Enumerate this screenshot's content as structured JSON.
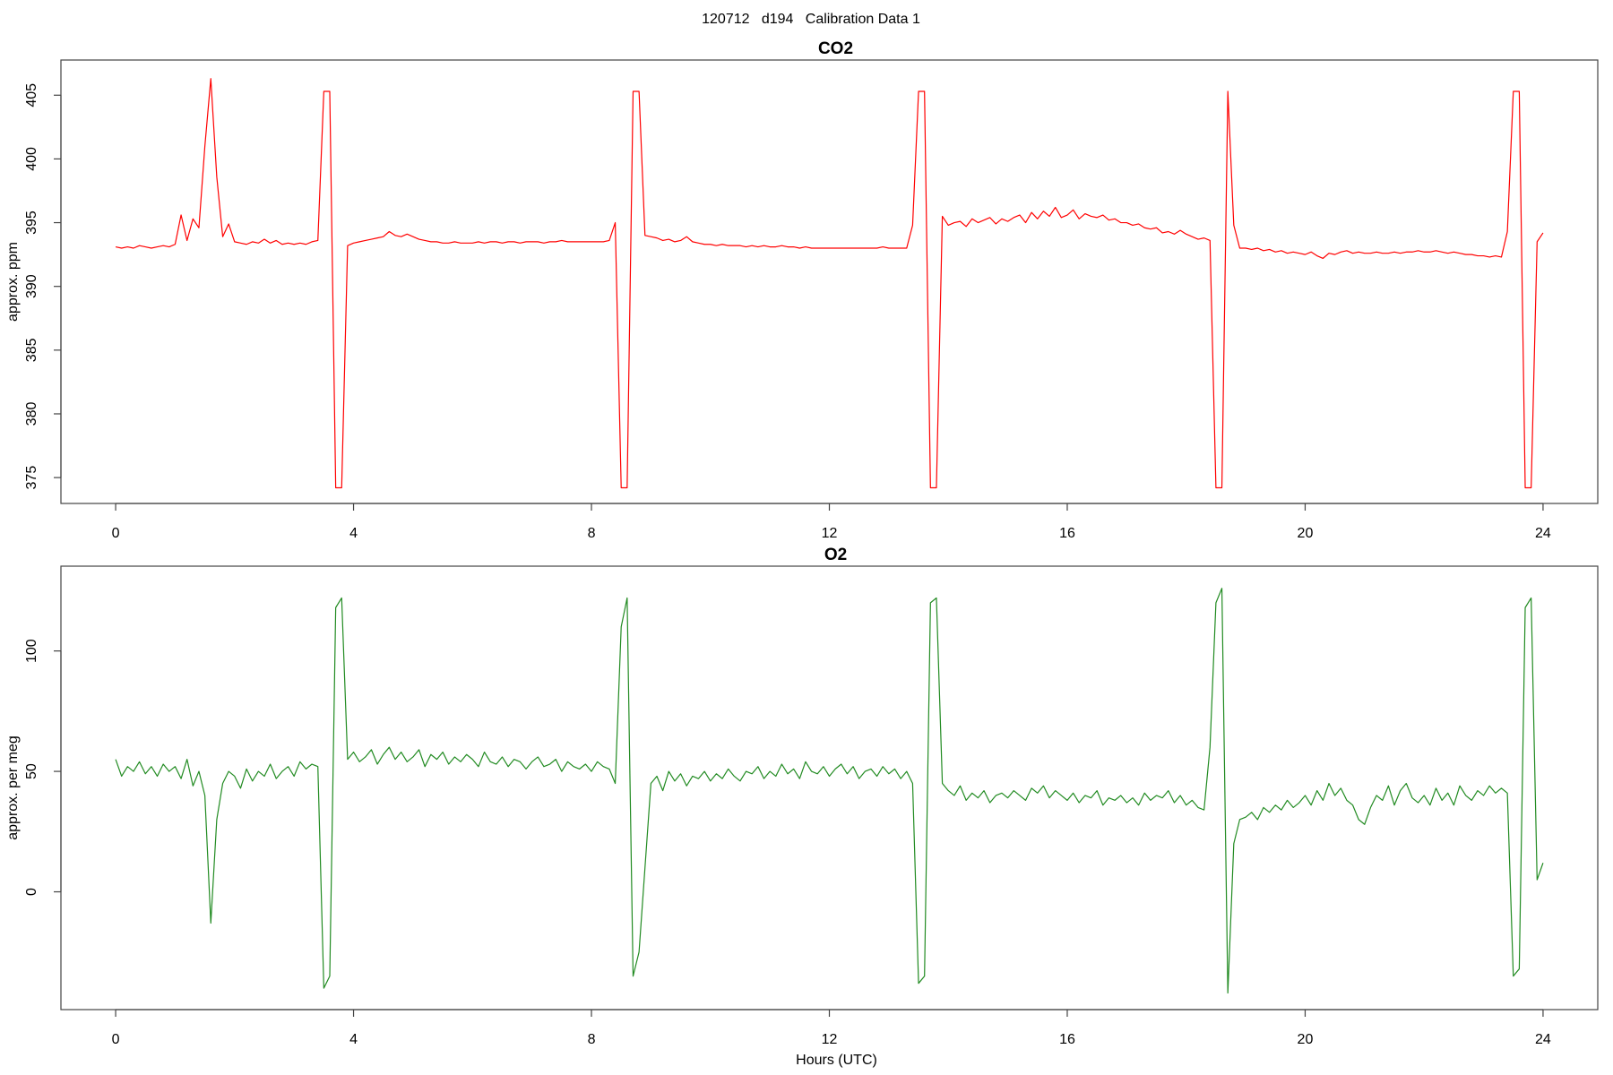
{
  "title": "120712   d194   Calibration Data 1",
  "chart_data": [
    {
      "type": "line",
      "title": "CO2",
      "y_label": "approx. ppm",
      "x": [
        0,
        0.1,
        0.2,
        0.3,
        0.4,
        0.5,
        0.6,
        0.7,
        0.8,
        0.9,
        1,
        1.1,
        1.2,
        1.3,
        1.4,
        1.5,
        1.6,
        1.7,
        1.8,
        1.9,
        2,
        2.1,
        2.2,
        2.3,
        2.4,
        2.5,
        2.6,
        2.7,
        2.8,
        2.9,
        3,
        3.1,
        3.2,
        3.3,
        3.4,
        3.5,
        3.6,
        3.7,
        3.8,
        3.9,
        4,
        4.1,
        4.2,
        4.3,
        4.4,
        4.5,
        4.6,
        4.7,
        4.8,
        4.9,
        5,
        5.1,
        5.2,
        5.3,
        5.4,
        5.5,
        5.6,
        5.7,
        5.8,
        5.9,
        6,
        6.1,
        6.2,
        6.3,
        6.4,
        6.5,
        6.6,
        6.7,
        6.8,
        6.9,
        7,
        7.1,
        7.2,
        7.3,
        7.4,
        7.5,
        7.6,
        7.7,
        7.8,
        7.9,
        8,
        8.1,
        8.2,
        8.3,
        8.4,
        8.5,
        8.6,
        8.7,
        8.8,
        8.9,
        9,
        9.1,
        9.2,
        9.3,
        9.4,
        9.5,
        9.6,
        9.7,
        9.8,
        9.9,
        10,
        10.1,
        10.2,
        10.3,
        10.4,
        10.5,
        10.6,
        10.7,
        10.8,
        10.9,
        11,
        11.1,
        11.2,
        11.3,
        11.4,
        11.5,
        11.6,
        11.7,
        11.8,
        11.9,
        12,
        12.1,
        12.2,
        12.3,
        12.4,
        12.5,
        12.6,
        12.7,
        12.8,
        12.9,
        13,
        13.1,
        13.2,
        13.3,
        13.4,
        13.5,
        13.6,
        13.7,
        13.8,
        13.9,
        14,
        14.1,
        14.2,
        14.3,
        14.4,
        14.5,
        14.6,
        14.7,
        14.8,
        14.9,
        15,
        15.1,
        15.2,
        15.3,
        15.4,
        15.5,
        15.6,
        15.7,
        15.8,
        15.9,
        16,
        16.1,
        16.2,
        16.3,
        16.4,
        16.5,
        16.6,
        16.7,
        16.8,
        16.9,
        17,
        17.1,
        17.2,
        17.3,
        17.4,
        17.5,
        17.6,
        17.7,
        17.8,
        17.9,
        18,
        18.1,
        18.2,
        18.3,
        18.4,
        18.5,
        18.6,
        18.7,
        18.8,
        18.9,
        19,
        19.1,
        19.2,
        19.3,
        19.4,
        19.5,
        19.6,
        19.7,
        19.8,
        19.9,
        20,
        20.1,
        20.2,
        20.3,
        20.4,
        20.5,
        20.6,
        20.7,
        20.8,
        20.9,
        21,
        21.1,
        21.2,
        21.3,
        21.4,
        21.5,
        21.6,
        21.7,
        21.8,
        21.9,
        22,
        22.1,
        22.2,
        22.3,
        22.4,
        22.5,
        22.6,
        22.7,
        22.8,
        22.9,
        23,
        23.1,
        23.2,
        23.3,
        23.4,
        23.5,
        23.6,
        23.7,
        23.8,
        23.9,
        24
      ],
      "series": [
        {
          "color": "#ff0000",
          "values": [
            393.1,
            393.0,
            393.1,
            393.0,
            393.2,
            393.1,
            393.0,
            393.1,
            393.2,
            393.1,
            393.3,
            395.6,
            393.6,
            395.3,
            394.6,
            401.0,
            406.3,
            398.6,
            393.9,
            394.9,
            393.5,
            393.4,
            393.3,
            393.5,
            393.4,
            393.7,
            393.4,
            393.6,
            393.3,
            393.4,
            393.3,
            393.4,
            393.3,
            393.5,
            393.6,
            405.3,
            405.3,
            374.2,
            374.2,
            393.2,
            393.4,
            393.5,
            393.6,
            393.7,
            393.8,
            393.9,
            394.3,
            394.0,
            393.9,
            394.1,
            393.9,
            393.7,
            393.6,
            393.5,
            393.5,
            393.4,
            393.4,
            393.5,
            393.4,
            393.4,
            393.4,
            393.5,
            393.4,
            393.5,
            393.5,
            393.4,
            393.5,
            393.5,
            393.4,
            393.5,
            393.5,
            393.5,
            393.4,
            393.5,
            393.5,
            393.6,
            393.5,
            393.5,
            393.5,
            393.5,
            393.5,
            393.5,
            393.5,
            393.6,
            395.0,
            374.2,
            374.2,
            405.3,
            405.3,
            394.0,
            393.9,
            393.8,
            393.6,
            393.7,
            393.5,
            393.6,
            393.9,
            393.5,
            393.4,
            393.3,
            393.3,
            393.2,
            393.3,
            393.2,
            393.2,
            393.2,
            393.1,
            393.2,
            393.1,
            393.2,
            393.1,
            393.1,
            393.2,
            393.1,
            393.1,
            393.0,
            393.1,
            393.0,
            393.0,
            393.0,
            393.0,
            393.0,
            393.0,
            393.0,
            393.0,
            393.0,
            393.0,
            393.0,
            393.0,
            393.1,
            393.0,
            393.0,
            393.0,
            393.0,
            394.8,
            405.3,
            405.3,
            374.2,
            374.2,
            395.5,
            394.8,
            395.0,
            395.1,
            394.7,
            395.3,
            395.0,
            395.2,
            395.4,
            394.9,
            395.3,
            395.1,
            395.4,
            395.6,
            395.0,
            395.8,
            395.3,
            395.9,
            395.5,
            396.2,
            395.4,
            395.6,
            396.0,
            395.3,
            395.7,
            395.5,
            395.4,
            395.6,
            395.2,
            395.3,
            395.0,
            395.0,
            394.8,
            394.9,
            394.6,
            394.5,
            394.6,
            394.2,
            394.3,
            394.1,
            394.4,
            394.1,
            393.9,
            393.7,
            393.8,
            393.6,
            374.2,
            374.2,
            405.3,
            394.8,
            393.0,
            393.0,
            392.9,
            393.0,
            392.8,
            392.9,
            392.7,
            392.8,
            392.6,
            392.7,
            392.6,
            392.5,
            392.7,
            392.4,
            392.2,
            392.6,
            392.5,
            392.7,
            392.8,
            392.6,
            392.7,
            392.6,
            392.6,
            392.7,
            392.6,
            392.6,
            392.7,
            392.6,
            392.7,
            392.7,
            392.8,
            392.7,
            392.7,
            392.8,
            392.7,
            392.6,
            392.7,
            392.6,
            392.5,
            392.5,
            392.4,
            392.4,
            392.3,
            392.4,
            392.3,
            394.3,
            405.3,
            405.3,
            374.2,
            374.2,
            393.5,
            394.2
          ]
        }
      ],
      "xlim": [
        -0.92,
        24.92
      ],
      "xticks": [
        0,
        4,
        8,
        12,
        16,
        20,
        24
      ],
      "ylim": [
        372.97,
        407.76
      ],
      "yticks": [
        375,
        380,
        385,
        390,
        395,
        400,
        405
      ]
    },
    {
      "type": "line",
      "title": "O2",
      "y_label": "approx. per meg",
      "x_label": "Hours (UTC)",
      "x": [
        0,
        0.1,
        0.2,
        0.3,
        0.4,
        0.5,
        0.6,
        0.7,
        0.8,
        0.9,
        1,
        1.1,
        1.2,
        1.3,
        1.4,
        1.5,
        1.6,
        1.7,
        1.8,
        1.9,
        2,
        2.1,
        2.2,
        2.3,
        2.4,
        2.5,
        2.6,
        2.7,
        2.8,
        2.9,
        3,
        3.1,
        3.2,
        3.3,
        3.4,
        3.5,
        3.6,
        3.7,
        3.8,
        3.9,
        4,
        4.1,
        4.2,
        4.3,
        4.4,
        4.5,
        4.6,
        4.7,
        4.8,
        4.9,
        5,
        5.1,
        5.2,
        5.3,
        5.4,
        5.5,
        5.6,
        5.7,
        5.8,
        5.9,
        6,
        6.1,
        6.2,
        6.3,
        6.4,
        6.5,
        6.6,
        6.7,
        6.8,
        6.9,
        7,
        7.1,
        7.2,
        7.3,
        7.4,
        7.5,
        7.6,
        7.7,
        7.8,
        7.9,
        8,
        8.1,
        8.2,
        8.3,
        8.4,
        8.5,
        8.6,
        8.7,
        8.8,
        8.9,
        9,
        9.1,
        9.2,
        9.3,
        9.4,
        9.5,
        9.6,
        9.7,
        9.8,
        9.9,
        10,
        10.1,
        10.2,
        10.3,
        10.4,
        10.5,
        10.6,
        10.7,
        10.8,
        10.9,
        11,
        11.1,
        11.2,
        11.3,
        11.4,
        11.5,
        11.6,
        11.7,
        11.8,
        11.9,
        12,
        12.1,
        12.2,
        12.3,
        12.4,
        12.5,
        12.6,
        12.7,
        12.8,
        12.9,
        13,
        13.1,
        13.2,
        13.3,
        13.4,
        13.5,
        13.6,
        13.7,
        13.8,
        13.9,
        14,
        14.1,
        14.2,
        14.3,
        14.4,
        14.5,
        14.6,
        14.7,
        14.8,
        14.9,
        15,
        15.1,
        15.2,
        15.3,
        15.4,
        15.5,
        15.6,
        15.7,
        15.8,
        15.9,
        16,
        16.1,
        16.2,
        16.3,
        16.4,
        16.5,
        16.6,
        16.7,
        16.8,
        16.9,
        17,
        17.1,
        17.2,
        17.3,
        17.4,
        17.5,
        17.6,
        17.7,
        17.8,
        17.9,
        18,
        18.1,
        18.2,
        18.3,
        18.4,
        18.5,
        18.6,
        18.7,
        18.8,
        18.9,
        19,
        19.1,
        19.2,
        19.3,
        19.4,
        19.5,
        19.6,
        19.7,
        19.8,
        19.9,
        20,
        20.1,
        20.2,
        20.3,
        20.4,
        20.5,
        20.6,
        20.7,
        20.8,
        20.9,
        21,
        21.1,
        21.2,
        21.3,
        21.4,
        21.5,
        21.6,
        21.7,
        21.8,
        21.9,
        22,
        22.1,
        22.2,
        22.3,
        22.4,
        22.5,
        22.6,
        22.7,
        22.8,
        22.9,
        23,
        23.1,
        23.2,
        23.3,
        23.4,
        23.5,
        23.6,
        23.7,
        23.8,
        23.9,
        24
      ],
      "series": [
        {
          "color": "#228b22",
          "values": [
            55,
            48,
            52,
            50,
            54,
            49,
            52,
            48,
            53,
            50,
            52,
            47,
            55,
            44,
            50,
            40,
            -13,
            30,
            45,
            50,
            48,
            43,
            51,
            46,
            50,
            48,
            53,
            47,
            50,
            52,
            48,
            54,
            51,
            53,
            52,
            -40,
            -35,
            118,
            122,
            55,
            58,
            54,
            56,
            59,
            53,
            57,
            60,
            55,
            58,
            54,
            56,
            59,
            52,
            57,
            55,
            58,
            53,
            56,
            54,
            57,
            55,
            52,
            58,
            54,
            53,
            56,
            52,
            55,
            54,
            51,
            54,
            56,
            52,
            53,
            55,
            50,
            54,
            52,
            51,
            53,
            50,
            54,
            52,
            51,
            45,
            110,
            122,
            -35,
            -25,
            10,
            45,
            48,
            42,
            50,
            46,
            49,
            44,
            48,
            47,
            50,
            46,
            49,
            47,
            51,
            48,
            46,
            50,
            49,
            52,
            47,
            50,
            48,
            53,
            49,
            51,
            47,
            54,
            50,
            49,
            52,
            48,
            51,
            53,
            49,
            52,
            47,
            50,
            51,
            48,
            52,
            49,
            51,
            47,
            50,
            45,
            -38,
            -35,
            120,
            122,
            45,
            42,
            40,
            44,
            38,
            41,
            39,
            42,
            37,
            40,
            41,
            39,
            42,
            40,
            38,
            43,
            41,
            44,
            39,
            42,
            40,
            38,
            41,
            37,
            40,
            39,
            42,
            36,
            39,
            38,
            40,
            37,
            39,
            36,
            41,
            38,
            40,
            39,
            42,
            37,
            40,
            36,
            38,
            35,
            34,
            60,
            120,
            126,
            -42,
            20,
            30,
            31,
            33,
            30,
            35,
            33,
            36,
            34,
            38,
            35,
            37,
            40,
            36,
            42,
            38,
            45,
            40,
            43,
            38,
            36,
            30,
            28,
            35,
            40,
            38,
            44,
            36,
            42,
            45,
            39,
            37,
            40,
            36,
            43,
            38,
            41,
            36,
            44,
            40,
            38,
            42,
            40,
            44,
            41,
            43,
            41,
            -35,
            -32,
            118,
            122,
            5,
            12
          ]
        }
      ],
      "xlim": [
        -0.92,
        24.92
      ],
      "xticks": [
        0,
        4,
        8,
        12,
        16,
        20,
        24
      ],
      "ylim": [
        -48.9,
        135.2
      ],
      "yticks": [
        0,
        50,
        100
      ]
    }
  ]
}
